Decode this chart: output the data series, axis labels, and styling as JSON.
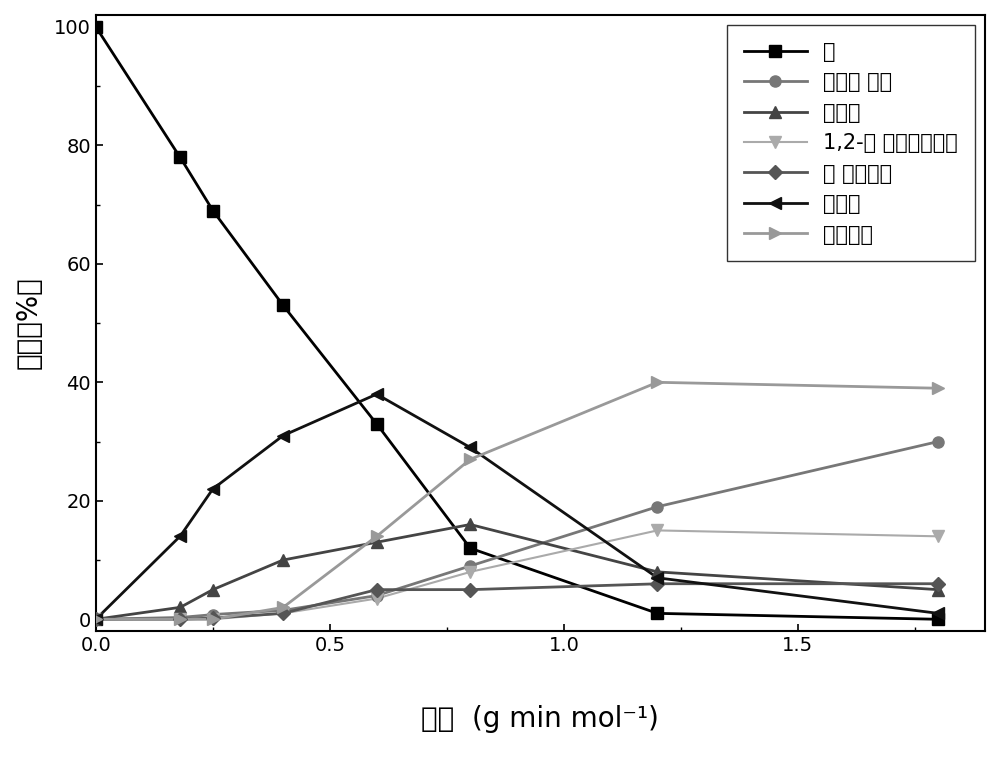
{
  "xlabel_main": "空时",
  "xlabel_unit": "(g min mol⁻¹)",
  "ylabel": "收率（%）",
  "xlim": [
    0.0,
    1.9
  ],
  "ylim": [
    -2,
    102
  ],
  "xticks": [
    0.0,
    0.5,
    1.0,
    1.5
  ],
  "yticks": [
    0,
    20,
    40,
    60,
    80,
    100
  ],
  "series": [
    {
      "name": "詵",
      "color": "#000000",
      "marker": "s",
      "linewidth": 2.0,
      "markersize": 8,
      "linestyle": "solid",
      "x": [
        0.0,
        0.18,
        0.25,
        0.4,
        0.6,
        0.8,
        1.2,
        1.8
      ],
      "y": [
        100,
        78,
        69,
        53,
        33,
        12,
        1,
        0
      ]
    },
    {
      "name": "全氢非 那烯",
      "color": "#777777",
      "marker": "o",
      "linewidth": 2.0,
      "markersize": 8,
      "linestyle": "solid",
      "x": [
        0.0,
        0.18,
        0.25,
        0.4,
        0.6,
        0.8,
        1.2,
        1.8
      ],
      "y": [
        0,
        0.3,
        0.8,
        1.5,
        4,
        9,
        19,
        30
      ]
    },
    {
      "name": "全氢詵",
      "color": "#444444",
      "marker": "^",
      "linewidth": 2.0,
      "markersize": 8,
      "linestyle": "solid",
      "x": [
        0.0,
        0.18,
        0.25,
        0.4,
        0.6,
        0.8,
        1.2,
        1.8
      ],
      "y": [
        0,
        2,
        5,
        10,
        13,
        16,
        8,
        5
      ]
    },
    {
      "name": "1,2-环 戊烷并十氢萌",
      "color": "#aaaaaa",
      "marker": "v",
      "linewidth": 1.5,
      "markersize": 8,
      "linestyle": "solid",
      "x": [
        0.0,
        0.18,
        0.25,
        0.4,
        0.6,
        0.8,
        1.2,
        1.8
      ],
      "y": [
        0,
        0,
        0,
        1.0,
        3.5,
        8,
        15,
        14
      ]
    },
    {
      "name": "丙 基金冈烷",
      "color": "#555555",
      "marker": "D",
      "linewidth": 2.0,
      "markersize": 7,
      "linestyle": "solid",
      "x": [
        0.0,
        0.18,
        0.25,
        0.4,
        0.6,
        0.8,
        1.2,
        1.8
      ],
      "y": [
        0,
        0,
        0.2,
        1.0,
        5,
        5,
        6,
        6
      ]
    },
    {
      "name": "六氢詵",
      "color": "#111111",
      "marker": "<",
      "linewidth": 2.0,
      "markersize": 8,
      "linestyle": "solid",
      "x": [
        0.0,
        0.18,
        0.25,
        0.4,
        0.6,
        0.8,
        1.2,
        1.8
      ],
      "y": [
        0,
        14,
        22,
        31,
        38,
        29,
        7,
        1
      ]
    },
    {
      "name": "裂解产物",
      "color": "#999999",
      "marker": ">",
      "linewidth": 2.0,
      "markersize": 8,
      "linestyle": "solid",
      "x": [
        0.0,
        0.18,
        0.25,
        0.4,
        0.6,
        0.8,
        1.2,
        1.8
      ],
      "y": [
        0,
        0,
        0,
        2,
        14,
        27,
        40,
        39
      ]
    }
  ],
  "legend_loc": "upper right",
  "background_color": "#ffffff",
  "legend_fontsize": 15,
  "tick_fontsize": 14,
  "label_fontsize": 20
}
